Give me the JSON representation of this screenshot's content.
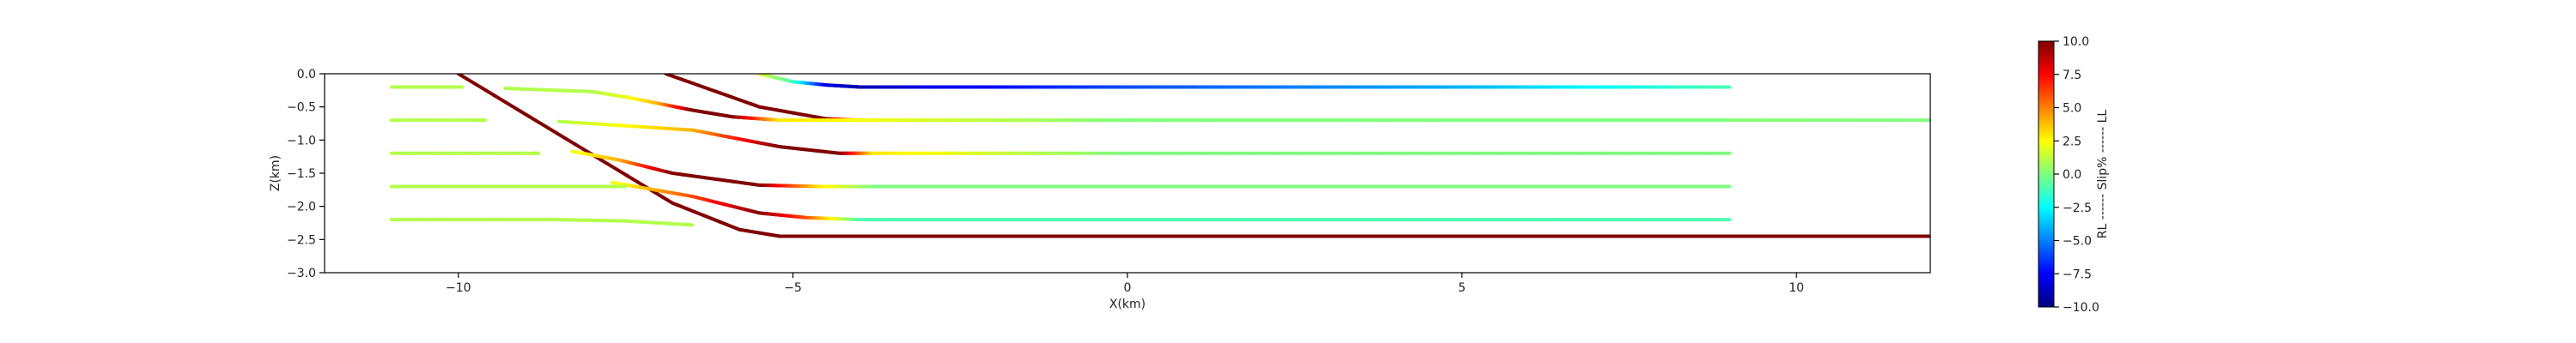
{
  "chart_data": {
    "type": "line",
    "title": "",
    "xlabel": "X(km)",
    "ylabel": "Z(km)",
    "xlim": [
      -12,
      12
    ],
    "ylim": [
      -3,
      0
    ],
    "xticks": [
      -10,
      -5,
      0,
      5,
      10
    ],
    "xtick_labels": [
      "−10",
      "−5",
      "0",
      "5",
      "10"
    ],
    "yticks": [
      0,
      -0.5,
      -1,
      -1.5,
      -2,
      -2.5,
      -3
    ],
    "ytick_labels": [
      "0.0",
      "−0.5",
      "−1.0",
      "−1.5",
      "−2.0",
      "−2.5",
      "−3.0"
    ],
    "grid": false,
    "colorbar": {
      "label": "RL ------ Slip% ------ LL",
      "range": [
        -10,
        10
      ],
      "colormap": "jet",
      "ticks": [
        10,
        7.5,
        5,
        2.5,
        0,
        -2.5,
        -5,
        -7.5,
        -10
      ],
      "tick_labels": [
        "10.0",
        "7.5",
        "5.0",
        "2.5",
        "0.0",
        "−2.5",
        "−5.0",
        "−7.5",
        "−10.0"
      ]
    },
    "series": [
      {
        "x": [
          -10,
          -6.8,
          -5.8,
          -5.2,
          12
        ],
        "y": [
          0,
          -1.95,
          -2.35,
          -2.45,
          -2.45
        ],
        "slip": [
          10,
          10,
          10,
          10,
          10
        ]
      },
      {
        "x": [
          -6.9,
          -5.5,
          -4.5,
          -4,
          -3,
          12
        ],
        "y": [
          0,
          -0.5,
          -0.68,
          -0.7,
          -0.7,
          -0.7
        ],
        "slip": [
          10,
          10,
          10,
          3,
          1,
          0
        ]
      },
      {
        "x": [
          -5.5,
          -5,
          -4.5,
          -4,
          -3,
          0,
          5,
          9
        ],
        "y": [
          0,
          -0.12,
          -0.17,
          -0.2,
          -0.2,
          -0.2,
          -0.2,
          -0.2
        ],
        "slip": [
          2,
          -1,
          -8,
          -9,
          -8,
          -6,
          -4,
          -1
        ]
      },
      {
        "x": [
          -8.5,
          -6.5,
          -5.2,
          -4.3,
          -3.8,
          0,
          9
        ],
        "y": [
          -0.72,
          -0.85,
          -1.1,
          -1.2,
          -1.2,
          -1.2,
          -1.2
        ],
        "slip": [
          1,
          4,
          10,
          10,
          3,
          0,
          0
        ]
      },
      {
        "x": [
          -8.3,
          -7.6,
          -6.8,
          -5.5,
          -4.6,
          -3.8,
          0,
          9
        ],
        "y": [
          -1.17,
          -1.3,
          -1.5,
          -1.68,
          -1.7,
          -1.7,
          -1.7,
          -1.7
        ],
        "slip": [
          2,
          4,
          10,
          10,
          3,
          0,
          0,
          0
        ]
      },
      {
        "x": [
          -7.7,
          -6.5,
          -5.5,
          -4.8,
          -4,
          0,
          9
        ],
        "y": [
          -1.64,
          -1.85,
          -2.1,
          -2.17,
          -2.2,
          -2.2,
          -2.2
        ],
        "slip": [
          2,
          6,
          10,
          6,
          -1,
          -1,
          -1
        ]
      },
      {
        "x": [
          -9.3,
          -8,
          -7.5,
          -7,
          -6.5,
          -5.9,
          -5.2,
          0,
          9
        ],
        "y": [
          -0.22,
          -0.27,
          -0.35,
          -0.45,
          -0.55,
          -0.65,
          -0.7,
          -0.7,
          -0.7
        ],
        "slip": [
          1,
          1,
          2,
          4,
          10,
          10,
          3,
          0,
          0
        ]
      },
      {
        "x": [
          -11,
          -10,
          -9.95
        ],
        "y": [
          -0.2,
          -0.2,
          -0.2
        ],
        "slip": [
          1,
          1,
          1
        ]
      },
      {
        "x": [
          -11,
          -9.7,
          -9.6
        ],
        "y": [
          -0.7,
          -0.7,
          -0.7
        ],
        "slip": [
          1,
          1,
          1
        ]
      },
      {
        "x": [
          -11,
          -8.9,
          -8.8
        ],
        "y": [
          -1.2,
          -1.2,
          -1.2
        ],
        "slip": [
          1,
          1,
          1
        ]
      },
      {
        "x": [
          -11,
          -7.6,
          -7.5
        ],
        "y": [
          -1.7,
          -1.7,
          -1.7
        ],
        "slip": [
          1,
          1,
          1
        ]
      },
      {
        "x": [
          -11,
          -8.5,
          -7.5,
          -6.5
        ],
        "y": [
          -2.2,
          -2.2,
          -2.22,
          -2.28
        ],
        "slip": [
          1,
          1,
          1,
          1
        ]
      }
    ]
  }
}
